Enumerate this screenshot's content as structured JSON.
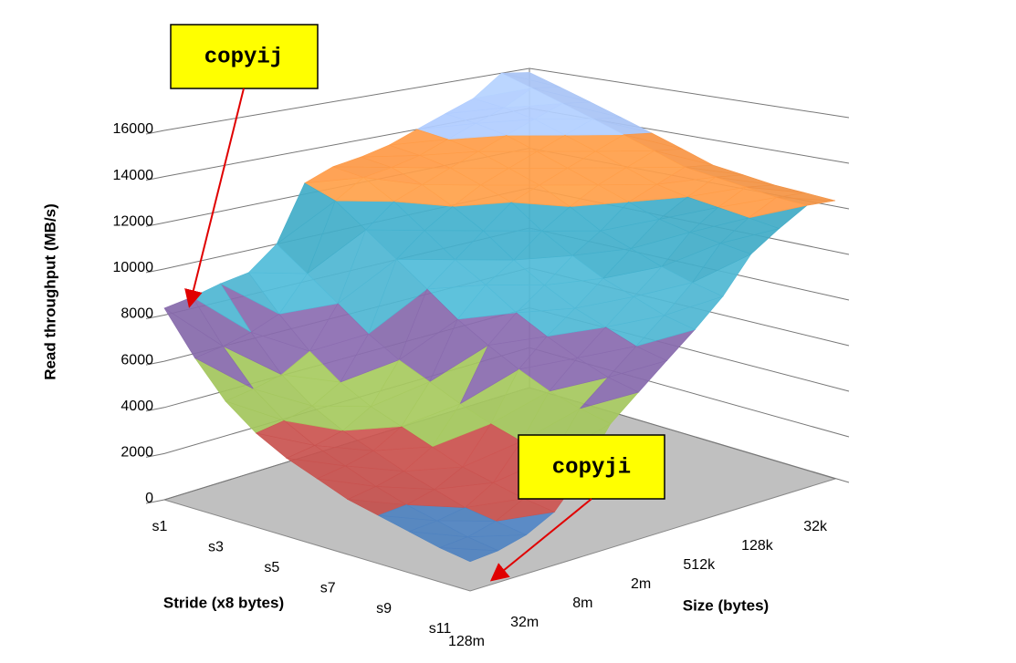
{
  "chart_data": {
    "type": "surface",
    "ylabel": "Read throughput (MB/s)",
    "xlabel": "Stride (x8 bytes)",
    "zlabel": "Size (bytes)",
    "strides": [
      "s1",
      null,
      "s3",
      null,
      "s5",
      null,
      "s7",
      null,
      "s9",
      null,
      "s11"
    ],
    "sizes": [
      "128m",
      null,
      "32m",
      null,
      "8m",
      null,
      "2m",
      null,
      "512k",
      null,
      "128k",
      null,
      "32k",
      null
    ],
    "values": [
      [
        8300,
        8500,
        8800,
        9000,
        10000,
        12500,
        13000,
        13200,
        13500,
        14000,
        14500,
        15000,
        16000,
        15800
      ],
      [
        6500,
        6700,
        7000,
        7500,
        9000,
        12000,
        12800,
        13000,
        13300,
        13800,
        14300,
        14800,
        15500,
        15300
      ],
      [
        5000,
        5200,
        5500,
        6200,
        8000,
        11000,
        12000,
        12500,
        13000,
        13500,
        14000,
        14500,
        15000,
        14800
      ],
      [
        4000,
        4200,
        4500,
        5200,
        7000,
        10000,
        11000,
        11800,
        12500,
        13000,
        13500,
        14000,
        14500,
        14300
      ],
      [
        3300,
        3500,
        3800,
        4500,
        6200,
        9000,
        10000,
        11000,
        12000,
        12500,
        13000,
        13500,
        14000,
        13800
      ],
      [
        2800,
        3000,
        3300,
        4000,
        5600,
        8000,
        9200,
        10000,
        11000,
        11800,
        12500,
        13000,
        13500,
        13300
      ],
      [
        2300,
        2500,
        2800,
        3500,
        5000,
        7200,
        8300,
        9200,
        10200,
        11000,
        12000,
        12500,
        13000,
        12800
      ],
      [
        2000,
        2100,
        2400,
        3000,
        4500,
        6500,
        7600,
        8500,
        9500,
        10500,
        11500,
        12200,
        12800,
        12600
      ],
      [
        1700,
        1800,
        2000,
        2700,
        4100,
        5900,
        7000,
        8000,
        9000,
        10000,
        11200,
        12000,
        12600,
        12400
      ],
      [
        1400,
        1500,
        1800,
        2400,
        3800,
        5500,
        6500,
        7500,
        8500,
        9600,
        11000,
        11800,
        12400,
        12300
      ],
      [
        1200,
        1300,
        1600,
        2200,
        3500,
        5200,
        6200,
        7200,
        8200,
        9300,
        10800,
        11600,
        12300,
        12200
      ]
    ],
    "ylim": [
      0,
      16000
    ],
    "yticks": [
      0,
      2000,
      4000,
      6000,
      8000,
      10000,
      12000,
      14000,
      16000
    ],
    "colors": [
      "#4f81bd",
      "#c0504d",
      "#9bbb59",
      "#8064a2",
      "#4bacc6",
      "#3fa3bd",
      "#f79646",
      "#a9c4f5"
    ],
    "floor_color": "#c0c0c0",
    "annotations": [
      {
        "text": "copyij"
      },
      {
        "text": "copyji"
      }
    ]
  }
}
